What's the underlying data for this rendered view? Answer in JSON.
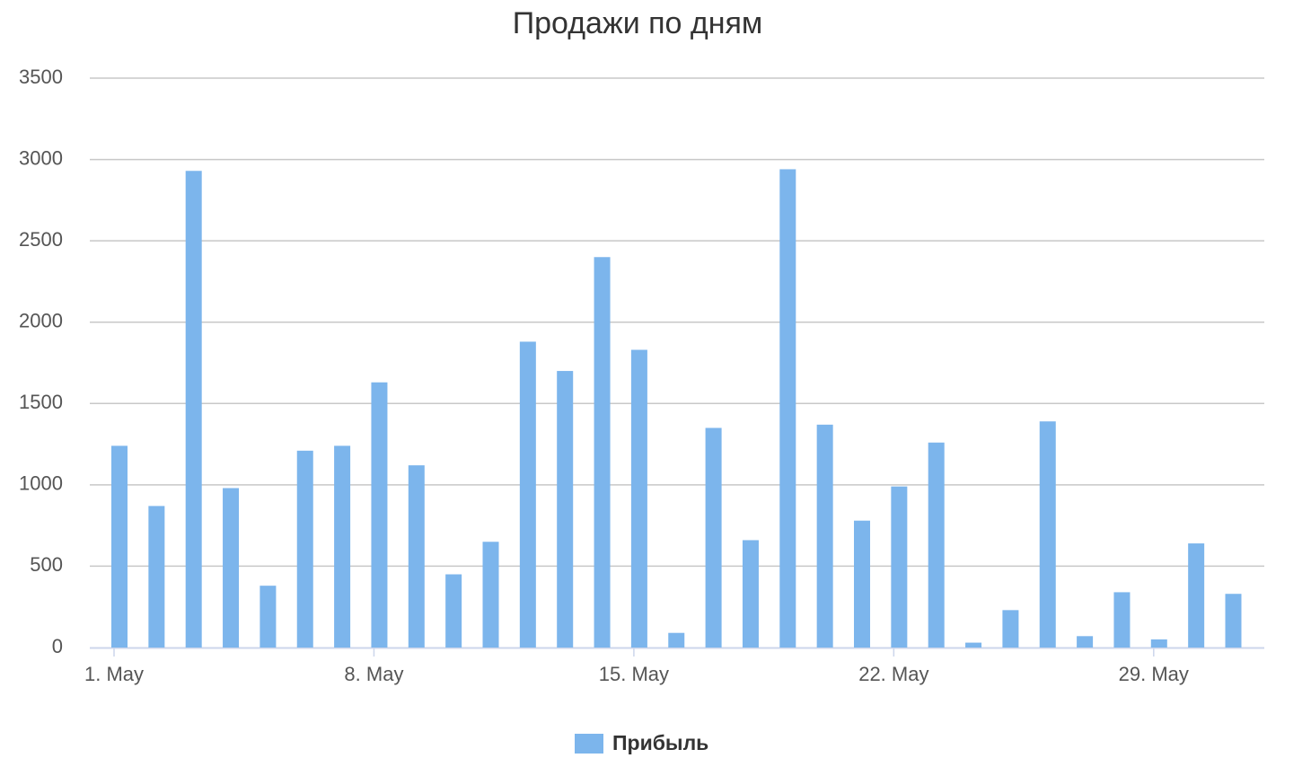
{
  "chart_data": {
    "type": "bar",
    "title": "Продажи по дням",
    "categories": [
      "1. May",
      null,
      null,
      null,
      null,
      null,
      null,
      "8. May",
      null,
      null,
      null,
      null,
      null,
      null,
      "15. May",
      null,
      null,
      null,
      null,
      null,
      null,
      "22. May",
      null,
      null,
      null,
      null,
      null,
      null,
      "29. May",
      null,
      null
    ],
    "series": [
      {
        "name": "Прибыль",
        "color": "#7cb5ec",
        "values": [
          1240,
          870,
          2930,
          980,
          380,
          1210,
          1240,
          1630,
          1120,
          450,
          650,
          1880,
          1700,
          2400,
          1830,
          90,
          1350,
          660,
          2940,
          1370,
          780,
          990,
          1260,
          30,
          230,
          1390,
          70,
          340,
          50,
          640,
          330
        ]
      }
    ],
    "ylim": [
      0,
      3500
    ],
    "yticks": [
      0,
      500,
      1000,
      1500,
      2000,
      2500,
      3000,
      3500
    ],
    "grid": true,
    "legend": "bottom"
  }
}
